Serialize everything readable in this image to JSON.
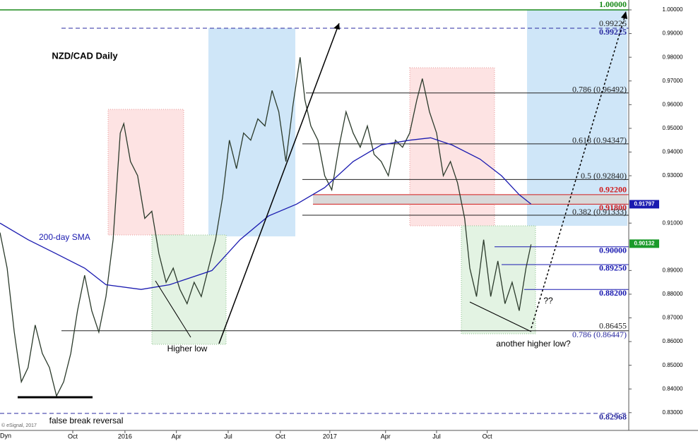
{
  "chart_data": {
    "type": "line",
    "title": "NZD/CAD Daily",
    "ylim": [
      0.8225,
      1.0
    ],
    "xlim": [
      0,
      159
    ],
    "yticks": [
      {
        "value": 0.83,
        "label": "0.83000"
      },
      {
        "value": 0.84,
        "label": "0.84000"
      },
      {
        "value": 0.85,
        "label": "0.85000"
      },
      {
        "value": 0.86,
        "label": "0.86000"
      },
      {
        "value": 0.87,
        "label": "0.87000"
      },
      {
        "value": 0.88,
        "label": "0.88000"
      },
      {
        "value": 0.89,
        "label": "0.89000"
      },
      {
        "value": 0.91,
        "label": "0.91000"
      },
      {
        "value": 0.93,
        "label": "0.93000"
      },
      {
        "value": 0.94,
        "label": "0.94000"
      },
      {
        "value": 0.95,
        "label": "0.95000"
      },
      {
        "value": 0.96,
        "label": "0.96000"
      },
      {
        "value": 0.97,
        "label": "0.97000"
      },
      {
        "value": 0.98,
        "label": "0.98000"
      },
      {
        "value": 0.99,
        "label": "0.99000"
      },
      {
        "value": 1.0,
        "label": "1.00000"
      }
    ],
    "xticks": [
      {
        "value": 18.4,
        "label": "Oct"
      },
      {
        "value": 31.6,
        "label": "2016"
      },
      {
        "value": 44.6,
        "label": "Apr"
      },
      {
        "value": 57.7,
        "label": "Jul"
      },
      {
        "value": 70.9,
        "label": "Oct"
      },
      {
        "value": 83.4,
        "label": "2017"
      },
      {
        "value": 97.5,
        "label": "Apr"
      },
      {
        "value": 110.4,
        "label": "Jul"
      },
      {
        "value": 123.2,
        "label": "Oct"
      }
    ],
    "price": {
      "color": "#2b3a2b",
      "x": [
        0,
        1.8,
        3.6,
        5.4,
        7.1,
        8.9,
        10.7,
        12.5,
        14.3,
        16.1,
        17.9,
        19.6,
        21.4,
        23.2,
        25,
        26.8,
        28.6,
        30.4,
        31.3,
        33,
        34.8,
        36.6,
        38.4,
        40.2,
        42,
        43.8,
        45.5,
        47.3,
        49.1,
        50.9,
        52.7,
        54.5,
        56.3,
        58,
        59.8,
        61.6,
        63.4,
        65.2,
        67,
        68.8,
        70.5,
        72.3,
        74.1,
        75.9,
        77.1,
        78.6,
        80.4,
        82.1,
        83.9,
        85.7,
        87.5,
        89.3,
        91.1,
        92.9,
        94.6,
        96.4,
        98.2,
        100,
        101.8,
        103.6,
        105.4,
        106.8,
        108.6,
        110.4,
        112.1,
        113.9,
        115.7,
        117.5,
        118.8,
        120.5,
        122.3,
        124.1,
        125.9,
        127.7,
        129.5,
        131.3,
        133,
        134.3
      ],
      "values": [
        0.906,
        0.891,
        0.864,
        0.843,
        0.849,
        0.867,
        0.855,
        0.849,
        0.837,
        0.843,
        0.855,
        0.873,
        0.888,
        0.873,
        0.864,
        0.879,
        0.903,
        0.948,
        0.952,
        0.936,
        0.93,
        0.912,
        0.915,
        0.897,
        0.885,
        0.891,
        0.882,
        0.876,
        0.885,
        0.879,
        0.891,
        0.903,
        0.921,
        0.945,
        0.933,
        0.948,
        0.945,
        0.954,
        0.951,
        0.966,
        0.957,
        0.936,
        0.96,
        0.98,
        0.962,
        0.951,
        0.945,
        0.93,
        0.924,
        0.942,
        0.957,
        0.948,
        0.942,
        0.951,
        0.939,
        0.936,
        0.93,
        0.945,
        0.942,
        0.948,
        0.962,
        0.971,
        0.957,
        0.948,
        0.93,
        0.936,
        0.927,
        0.912,
        0.891,
        0.879,
        0.903,
        0.879,
        0.894,
        0.876,
        0.885,
        0.873,
        0.891,
        0.901
      ]
    },
    "sma": {
      "name": "200-day SMA",
      "color": "#1a1ab0",
      "x": [
        0,
        7.1,
        14.3,
        21.4,
        26.8,
        35.7,
        42.9,
        53.6,
        60.7,
        67.9,
        75,
        82.1,
        89.3,
        96.4,
        103.6,
        108.9,
        114.3,
        121.4,
        126.8,
        131.3,
        134.3
      ],
      "values": [
        0.91,
        0.903,
        0.897,
        0.891,
        0.884,
        0.882,
        0.884,
        0.89,
        0.903,
        0.913,
        0.918,
        0.925,
        0.936,
        0.943,
        0.945,
        0.946,
        0.943,
        0.937,
        0.93,
        0.922,
        0.918
      ]
    },
    "levels": [
      {
        "value": 1.0,
        "label": "1.00000",
        "color": "#1a8a1a"
      },
      {
        "value": 0.99225,
        "label": "0.99225",
        "color": "#2a2aa0"
      },
      {
        "value": 0.96492,
        "label": "0.786 (0.96492)",
        "color": "#222222"
      },
      {
        "value": 0.94347,
        "label": "0.618 (0.94347)",
        "color": "#222222"
      },
      {
        "value": 0.9284,
        "label": "0.5 (0.92840)",
        "color": "#222222"
      },
      {
        "value": 0.922,
        "label": "0.92200",
        "color": "#d11a1a"
      },
      {
        "value": 0.918,
        "label": "0.91800",
        "color": "#d11a1a"
      },
      {
        "value": 0.91333,
        "label": "0.382 (0.91333)",
        "color": "#222222"
      },
      {
        "value": 0.9,
        "label": "0.90000",
        "color": "#1a1ab0"
      },
      {
        "value": 0.8925,
        "label": "0.89250",
        "color": "#1a1ab0"
      },
      {
        "value": 0.882,
        "label": "0.88200",
        "color": "#1a1ab0"
      },
      {
        "value": 0.86455,
        "label": "0.86455",
        "color": "#222222"
      },
      {
        "value": 0.86447,
        "label": "0.786 (0.86447)",
        "color": "#2a2aa0"
      },
      {
        "value": 0.82968,
        "label": "0.82968",
        "color": "#2a2aa0"
      }
    ],
    "markers": [
      {
        "value": 0.91797,
        "label": "0.91797",
        "color": "#1a1ab0"
      },
      {
        "value": 0.90132,
        "label": "0.90132",
        "color": "#1a9a2a"
      }
    ],
    "annotations": [
      "Higher low",
      "false break reversal",
      "another higher low?",
      "??",
      "© eSignal, 2017",
      "Dyn"
    ]
  }
}
